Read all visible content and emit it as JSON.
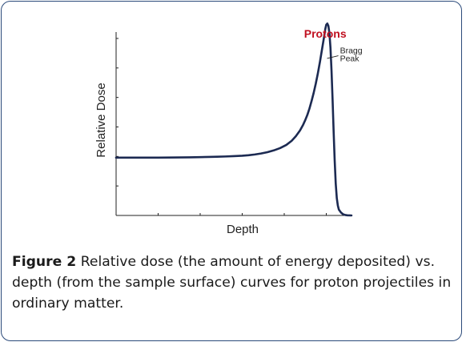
{
  "chart_data": {
    "type": "line",
    "title": "",
    "xlabel": "Depth",
    "ylabel": "Relative Dose",
    "series": [
      {
        "name": "Protons",
        "color": "#1c2a52",
        "x": [
          0,
          0.5,
          1.0,
          1.5,
          2.0,
          2.5,
          3.0,
          3.5,
          4.0,
          4.4,
          4.8,
          5.2,
          5.6,
          6.0,
          6.3,
          6.6,
          6.9,
          7.2,
          7.5,
          7.8,
          8.1,
          8.35,
          8.55,
          8.75,
          8.9,
          9.0,
          9.1,
          9.2,
          9.3,
          9.4,
          9.5,
          9.6,
          9.7,
          9.8,
          9.9,
          9.95,
          10.0,
          10.05,
          10.1,
          10.15,
          10.2,
          10.25,
          10.3,
          10.35,
          10.4,
          10.45,
          10.5,
          10.55,
          10.6,
          10.7,
          10.8,
          10.9,
          11.0,
          11.2
        ],
        "y": [
          1.0,
          1.0,
          1.0,
          1.0,
          1.0,
          1.002,
          1.004,
          1.006,
          1.009,
          1.012,
          1.016,
          1.02,
          1.026,
          1.033,
          1.042,
          1.055,
          1.072,
          1.095,
          1.125,
          1.165,
          1.22,
          1.29,
          1.37,
          1.47,
          1.57,
          1.65,
          1.74,
          1.85,
          1.98,
          2.12,
          2.28,
          2.46,
          2.66,
          2.88,
          3.1,
          3.22,
          3.3,
          3.32,
          3.28,
          3.15,
          2.9,
          2.5,
          2.0,
          1.45,
          0.95,
          0.55,
          0.3,
          0.17,
          0.1,
          0.05,
          0.02,
          0.008,
          0.003,
          0.0
        ]
      }
    ],
    "xlim": [
      0,
      12
    ],
    "ylim": [
      0,
      3.45
    ],
    "grid": false,
    "annotations": [
      {
        "text": "Bragg",
        "x": 10.65,
        "y": 2.86,
        "anchor_x": 10.0,
        "anchor_y": 2.73
      },
      {
        "text": "Peak",
        "x": 10.65,
        "y": 2.72
      }
    ],
    "series_label": {
      "text": "Protons",
      "color": "#c01020",
      "x": 9.95,
      "y": 3.5
    }
  },
  "caption": {
    "lead": "Figure 2",
    "text": " Relative dose (the amount of energy deposited) vs. depth (from the sample surface) curves for proton projectiles in ordinary matter."
  }
}
